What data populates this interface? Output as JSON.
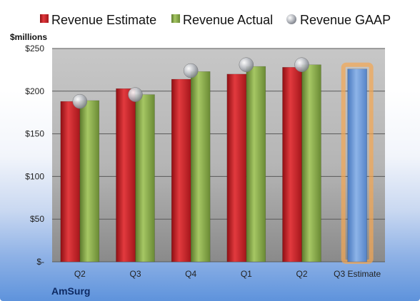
{
  "chart_data": {
    "type": "bar",
    "unit_label": "$millions",
    "company": "AmSurg",
    "categories": [
      "Q2",
      "Q3",
      "Q4",
      "Q1",
      "Q2",
      "Q3 Estimate"
    ],
    "y_ticks": [
      {
        "value": 0,
        "label": "$-"
      },
      {
        "value": 50,
        "label": "$50"
      },
      {
        "value": 100,
        "label": "$100"
      },
      {
        "value": 150,
        "label": "$150"
      },
      {
        "value": 200,
        "label": "$200"
      },
      {
        "value": 250,
        "label": "$250"
      }
    ],
    "ylim": [
      0,
      250
    ],
    "grid": true,
    "legend_position": "top",
    "series": [
      {
        "name": "Revenue Estimate",
        "type": "bar",
        "color": "#d42027",
        "values": [
          188,
          203,
          214,
          220,
          228,
          null
        ]
      },
      {
        "name": "Revenue Actual",
        "type": "bar",
        "color": "#8aac4a",
        "values": [
          189,
          196,
          223,
          229,
          231,
          null
        ]
      },
      {
        "name": "Revenue GAAP",
        "type": "marker",
        "color": "#b4b8c0",
        "values": [
          188,
          196,
          224,
          231,
          231,
          null
        ]
      },
      {
        "name": "Q3 Estimate",
        "type": "bar",
        "color": "#6f9bd6",
        "highlight": "#f5a651",
        "values": [
          null,
          null,
          null,
          null,
          null,
          226
        ]
      }
    ]
  }
}
